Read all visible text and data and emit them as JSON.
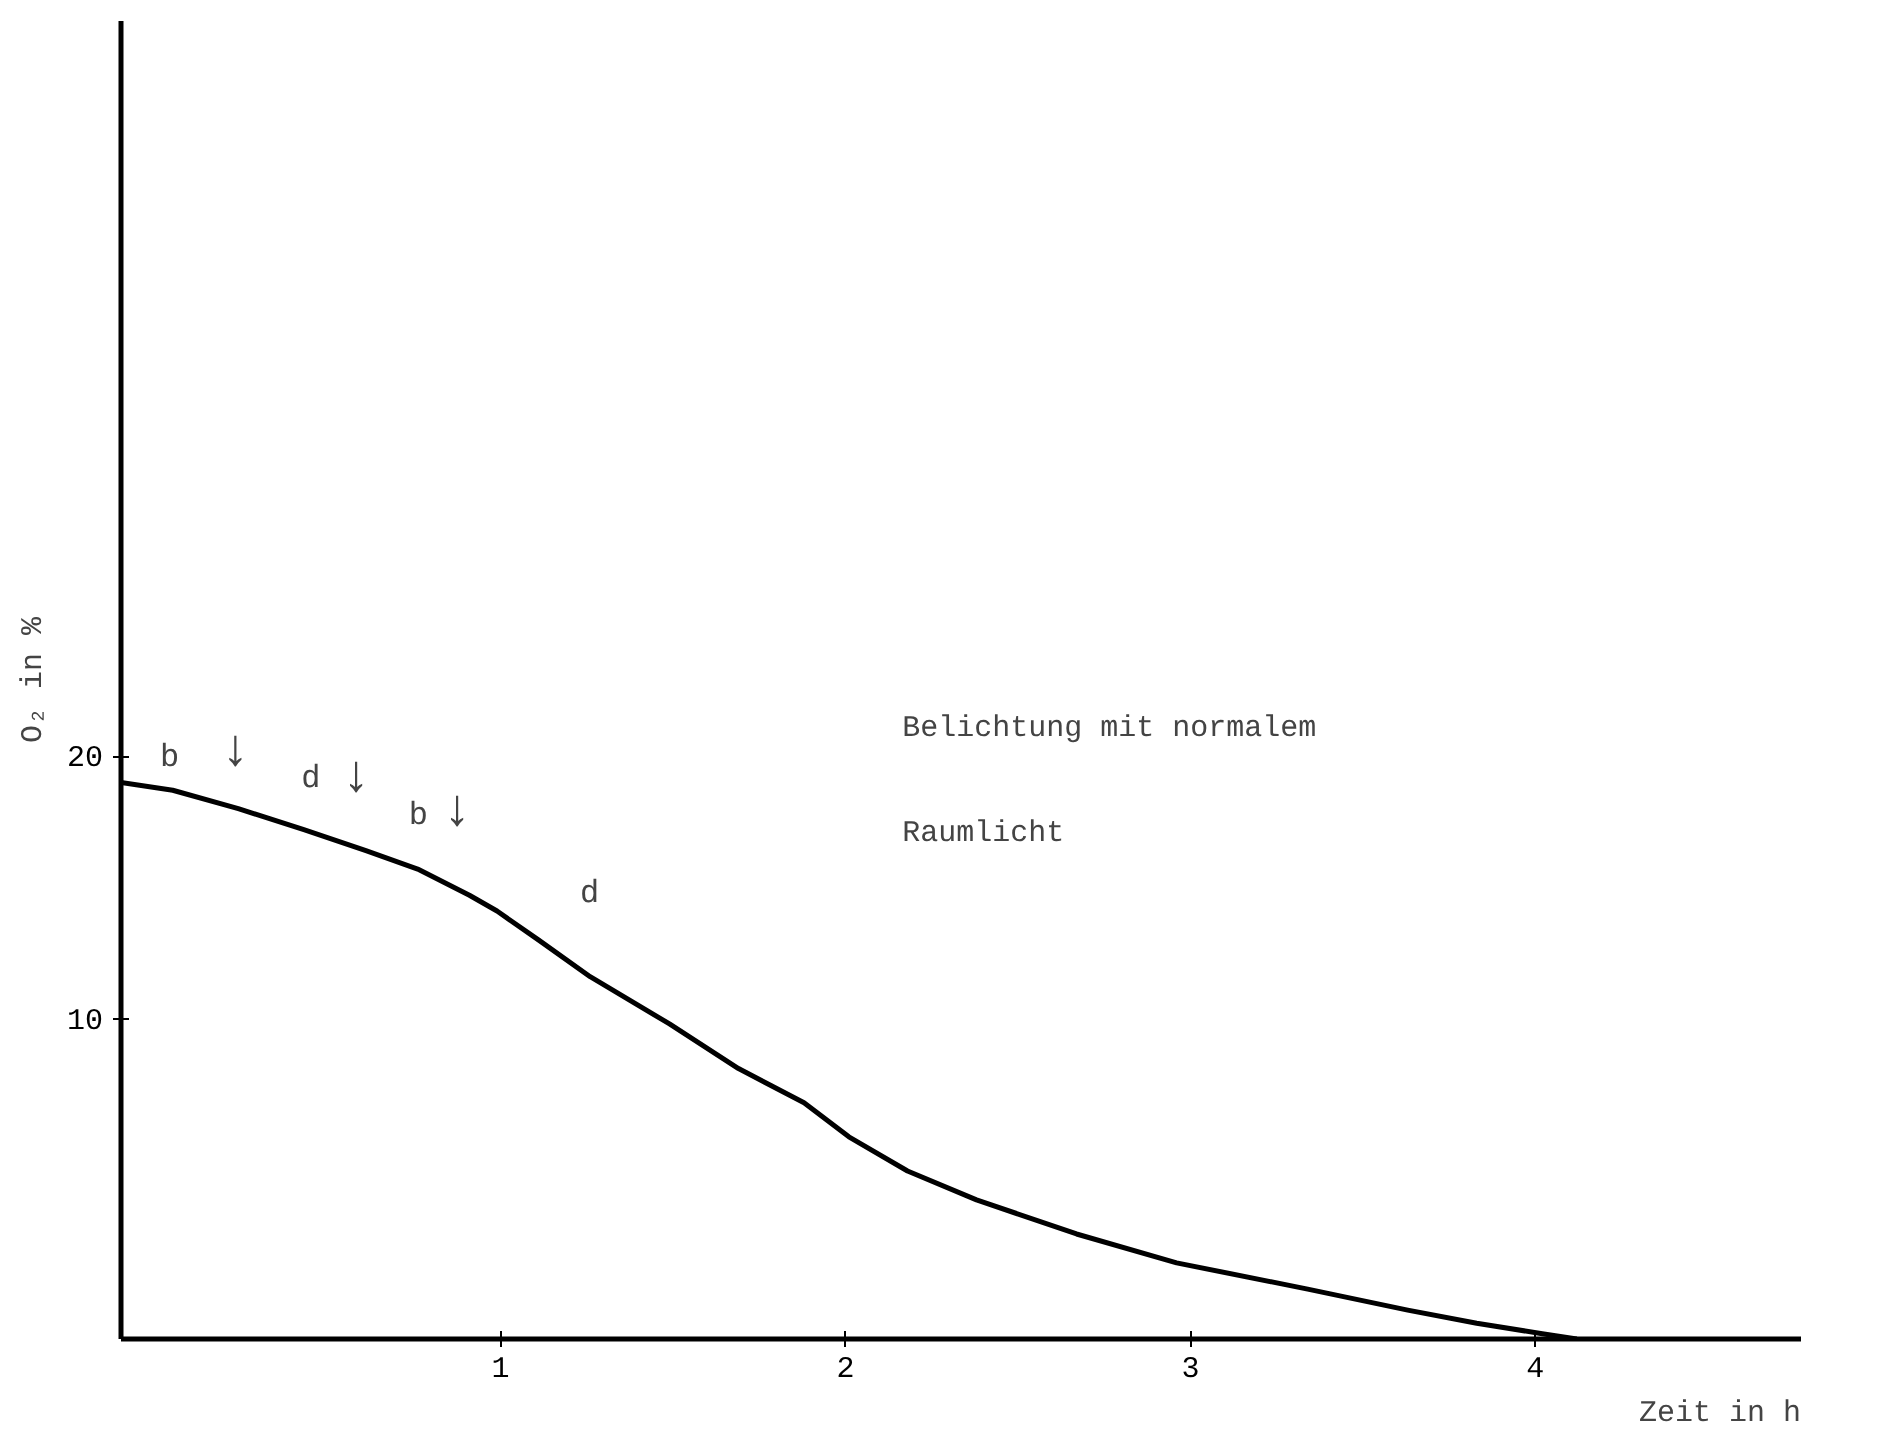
{
  "chart_data": {
    "type": "line",
    "xlabel": "Zeit in h",
    "ylabel": "O₂ in %",
    "x": [
      -0.1,
      0.05,
      0.24,
      0.43,
      0.61,
      0.76,
      0.91,
      0.99,
      1.11,
      1.26,
      1.49,
      1.69,
      1.88,
      2.01,
      2.18,
      2.38,
      2.67,
      2.96,
      3.34,
      3.63,
      3.83,
      4.02,
      4.12
    ],
    "series": [
      {
        "color": "#000000",
        "values": [
          19.0,
          18.7,
          18.0,
          17.2,
          16.4,
          15.7,
          14.7,
          14.1,
          13.0,
          11.6,
          9.8,
          8.1,
          6.8,
          5.5,
          4.2,
          3.1,
          1.8,
          0.7,
          -0.3,
          -1.1,
          -1.6,
          -2.0,
          -2.2
        ]
      }
    ],
    "xlim": [
      -0.1,
      4.77
    ],
    "ylim": [
      -2.2,
      48
    ],
    "xticks": [
      1,
      2,
      3,
      4
    ],
    "yticks": [
      10,
      20
    ],
    "grid": false,
    "marker": "none",
    "line_style": "solid",
    "annotations": [
      "b",
      "↓",
      "d",
      "↓",
      "b",
      "↓",
      "d",
      "Belichtung mit normalem",
      "Raumlicht"
    ]
  }
}
